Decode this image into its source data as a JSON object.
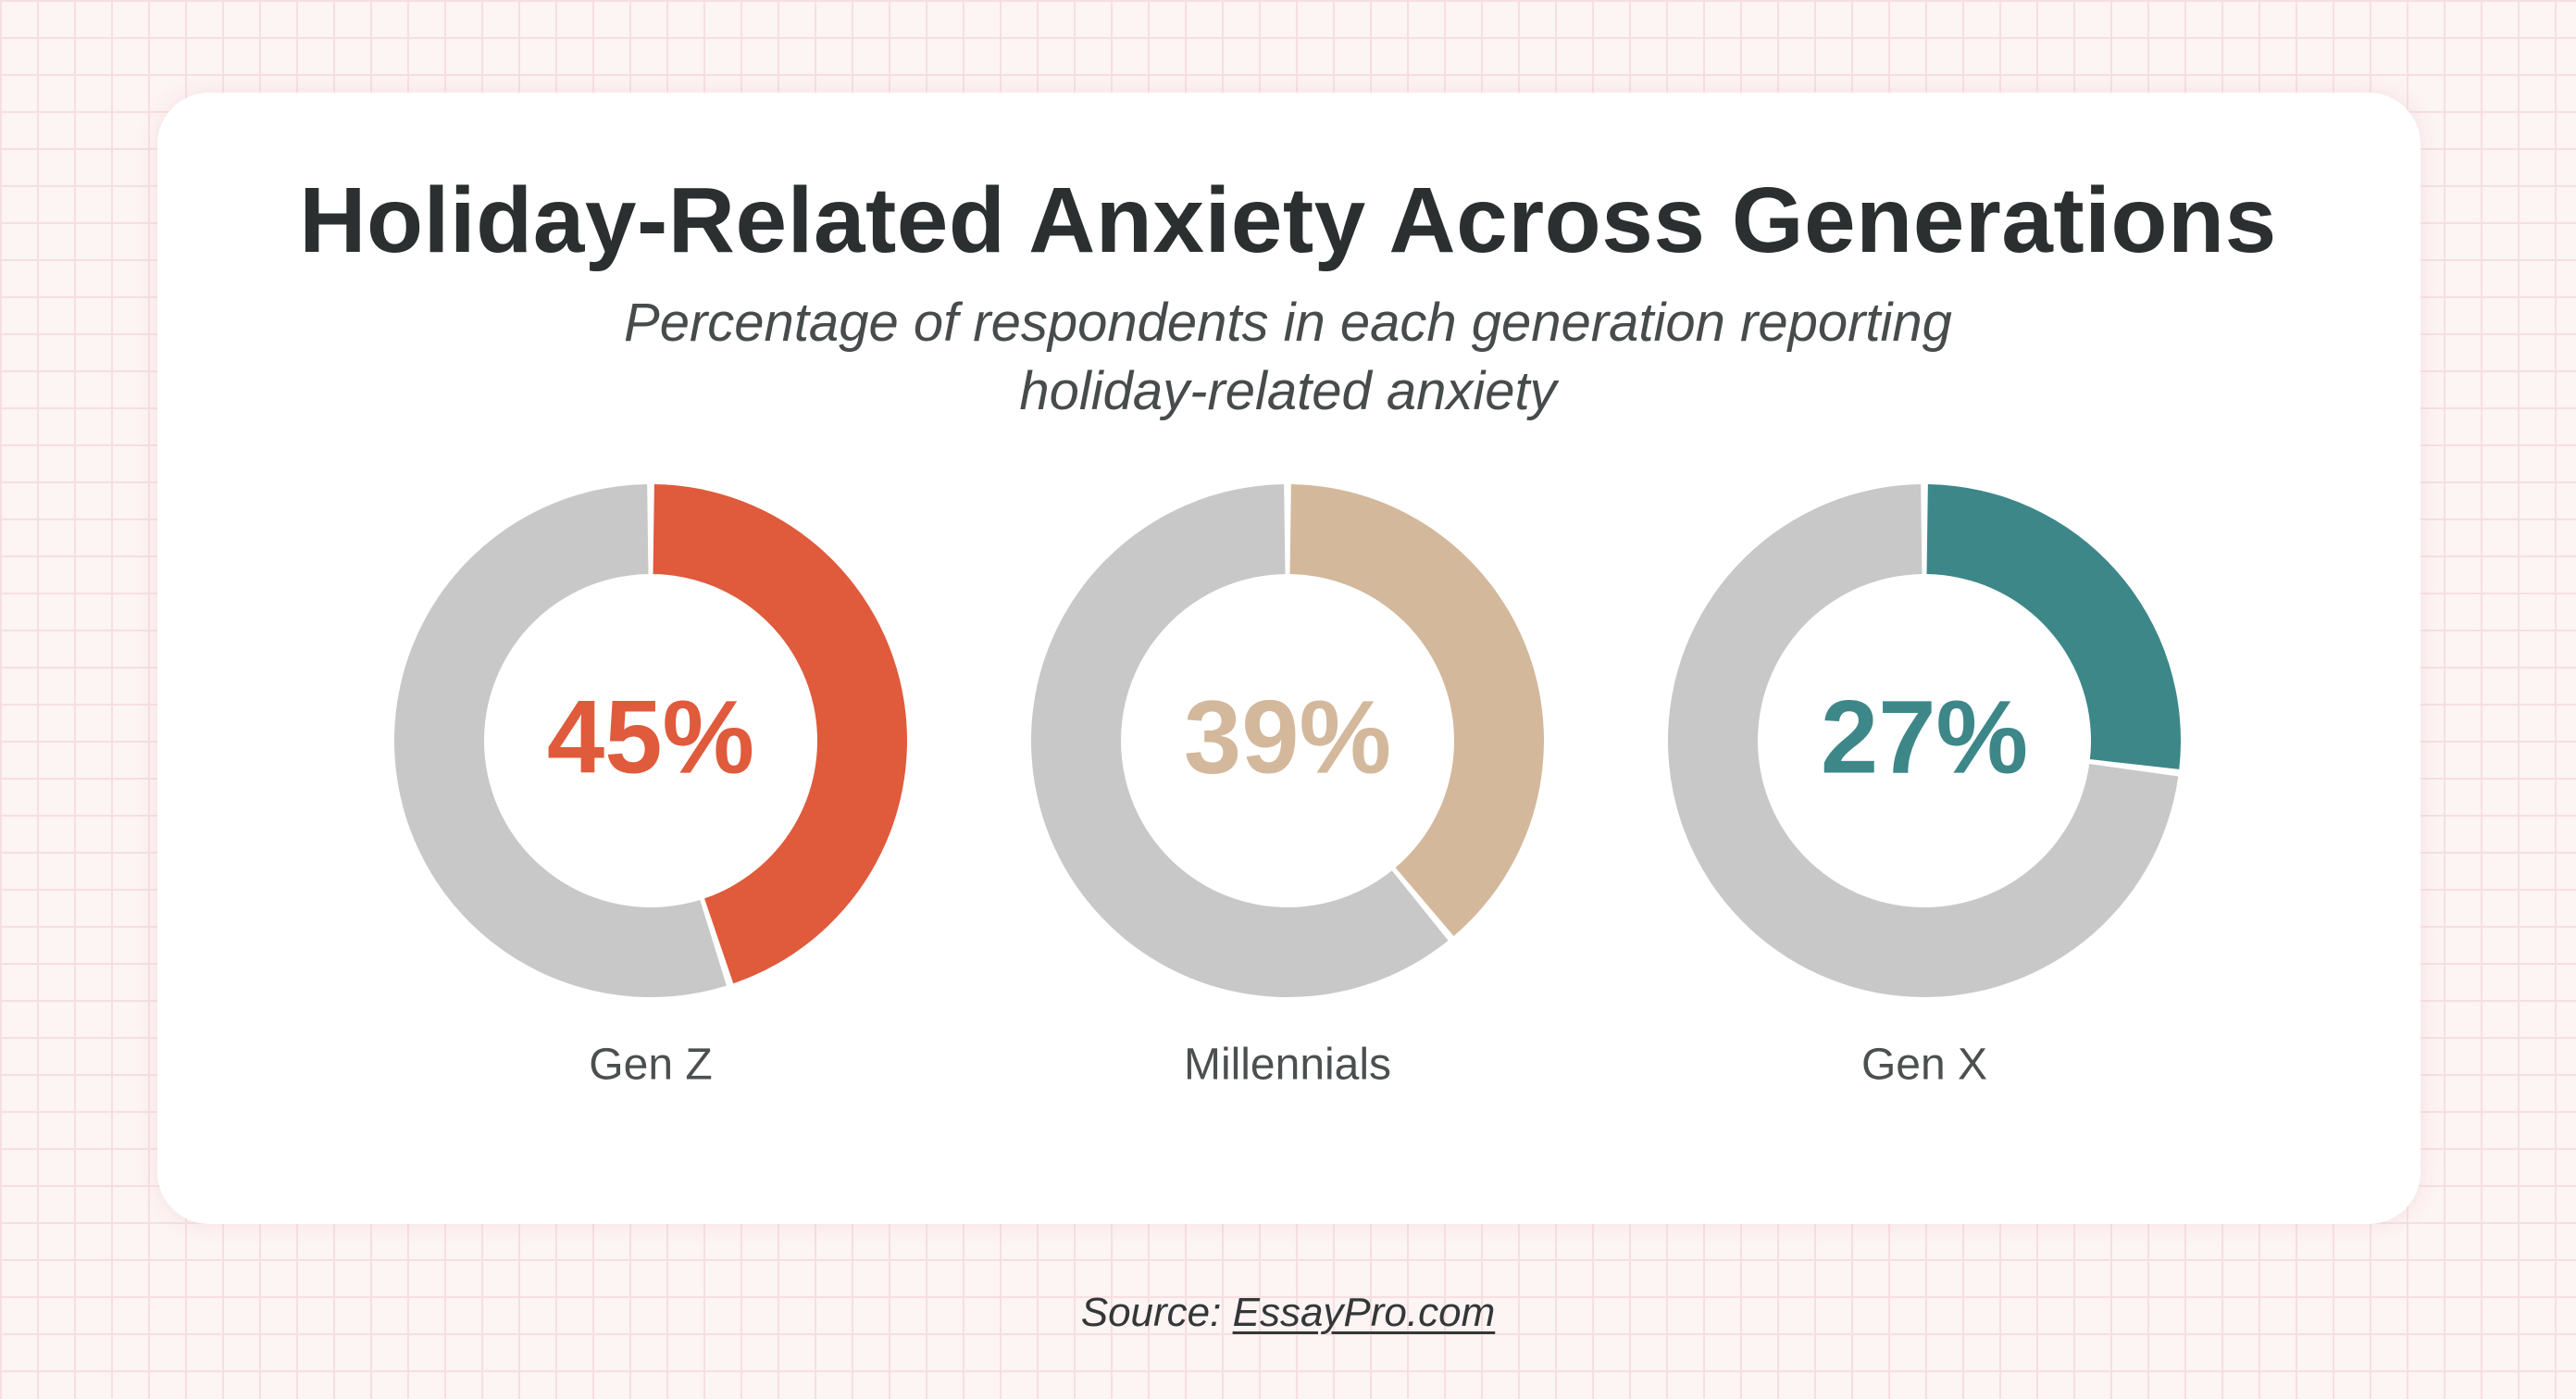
{
  "chart_data": {
    "type": "pie",
    "title": "Holiday-Related Anxiety Across Generations",
    "subtitle": "Percentage of respondents in each generation reporting holiday-related anxiety",
    "categories": [
      "Gen Z",
      "Millennials",
      "Gen X"
    ],
    "values": [
      45,
      39,
      27
    ],
    "value_labels": [
      "45%",
      "39%",
      "27%"
    ],
    "colors": [
      "#e05a3c",
      "#d3b89c",
      "#3d8789"
    ],
    "remainder_color": "#c8c8c8",
    "max": 100
  },
  "footer": {
    "source_prefix": "Source: ",
    "source_link": "EssayPro.com"
  }
}
